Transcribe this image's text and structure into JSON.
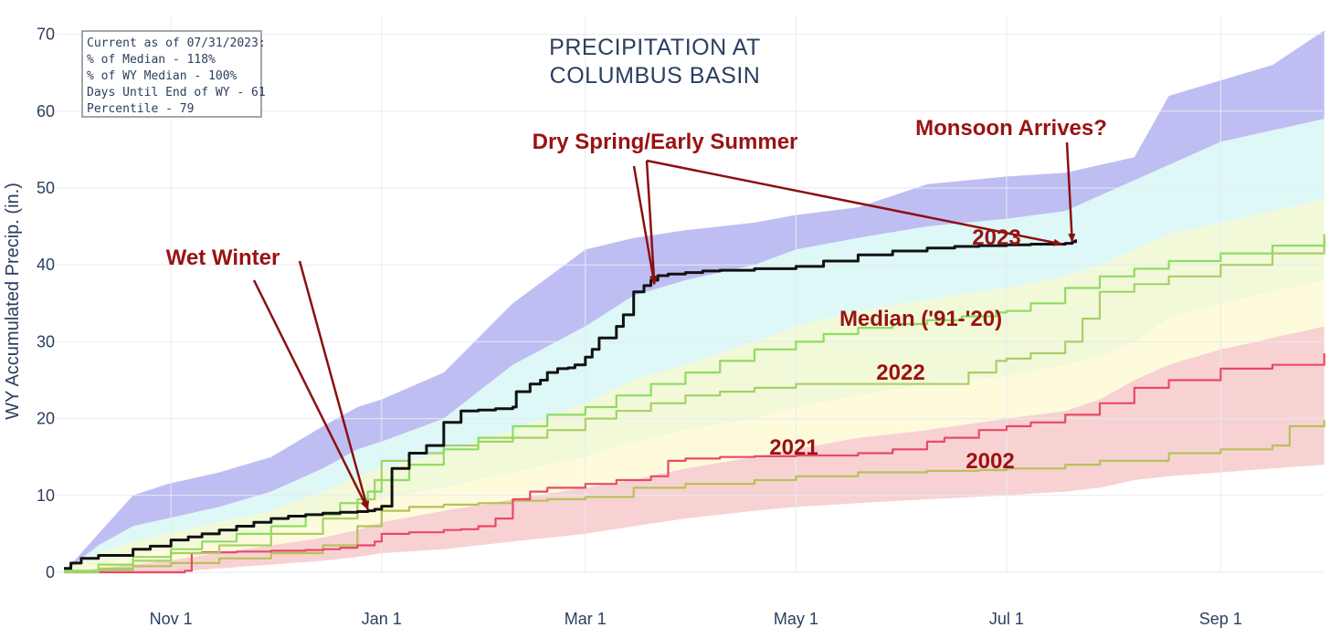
{
  "chart_data": {
    "type": "area",
    "title_lines": [
      "PRECIPITATION AT",
      "COLUMBUS BASIN"
    ],
    "ylabel": "WY Accumulated Precip. (in.)",
    "xlabel": "",
    "xlim_days": [
      0,
      365
    ],
    "ylim": [
      0,
      72
    ],
    "y_ticks": [
      0,
      10,
      20,
      30,
      40,
      50,
      60,
      70
    ],
    "x_ticks": [
      {
        "label": "Nov  1",
        "day": 31
      },
      {
        "label": "Jan  1",
        "day": 92
      },
      {
        "label": "Mar  1",
        "day": 151
      },
      {
        "label": "May  1",
        "day": 212
      },
      {
        "label": "Jul  1",
        "day": 273
      },
      {
        "label": "Sep  1",
        "day": 335
      }
    ],
    "grid": true,
    "info_box": [
      "Current as of 07/31/2023:",
      "% of Median - 118%",
      "% of WY Median - 100%",
      "Days Until End of WY - 61",
      "Percentile - 79"
    ],
    "percentile_bands": {
      "x": [
        0,
        10,
        20,
        30,
        45,
        60,
        75,
        85,
        92,
        110,
        130,
        151,
        165,
        180,
        200,
        212,
        230,
        250,
        273,
        290,
        300,
        310,
        320,
        335,
        350,
        365
      ],
      "max": [
        0,
        5,
        10,
        11.5,
        13,
        15,
        19,
        21.5,
        22.5,
        26,
        35,
        42,
        43.5,
        44.5,
        45.5,
        46.5,
        47.5,
        50.5,
        51.5,
        52,
        53,
        54,
        62,
        64,
        66,
        70.5
      ],
      "p90": [
        0,
        3.5,
        6,
        7,
        8.5,
        10.5,
        13.5,
        16,
        17,
        20,
        27,
        32,
        36,
        38,
        40,
        42,
        43.5,
        45,
        46,
        47,
        49,
        51,
        53,
        56,
        57.5,
        59
      ],
      "p70": [
        0,
        2.5,
        4,
        5,
        6.5,
        8,
        10.5,
        12.5,
        13.5,
        15.5,
        18.5,
        22,
        25,
        27,
        30,
        32,
        34,
        35.5,
        37,
        38.5,
        40,
        42,
        44,
        45.5,
        47,
        48.5
      ],
      "p30": [
        0,
        1,
        2,
        3,
        4,
        5.5,
        7,
        8.5,
        9.5,
        11,
        13,
        15,
        17,
        18.5,
        20,
        21.5,
        23,
        24.5,
        25.5,
        27,
        28,
        30,
        33,
        35,
        36.5,
        38
      ],
      "p10": [
        0,
        0.5,
        1,
        1.5,
        2.5,
        3.5,
        4.5,
        5.5,
        6.5,
        8,
        9.5,
        11,
        12,
        13.5,
        15,
        16,
        17.5,
        18.5,
        20,
        21,
        22.5,
        25,
        27,
        29,
        30.5,
        32
      ],
      "min": [
        0,
        0,
        0,
        0,
        0.5,
        1,
        1.5,
        2,
        2.5,
        3,
        4,
        5,
        6,
        7,
        8,
        8.5,
        9,
        9.5,
        10,
        10.5,
        11,
        12,
        12.5,
        13,
        13.5,
        14
      ]
    },
    "band_colors": [
      "#bfbef3",
      "#ddf8f6",
      "#f2f9d9",
      "#fdfbdc",
      "#f8d2d2"
    ],
    "series": [
      {
        "name": "2023",
        "color": "#111111",
        "width": 3,
        "x": [
          0,
          2,
          5,
          10,
          20,
          25,
          31,
          36,
          40,
          45,
          50,
          55,
          60,
          65,
          70,
          75,
          80,
          85,
          88,
          90,
          92,
          95,
          100,
          105,
          110,
          115,
          120,
          125,
          130,
          131,
          135,
          138,
          140,
          143,
          146,
          148,
          151,
          153,
          155,
          160,
          162,
          165,
          168,
          170,
          172,
          175,
          180,
          185,
          190,
          200,
          212,
          220,
          230,
          240,
          250,
          258,
          265,
          273,
          280,
          285,
          290,
          292,
          293
        ],
        "y": [
          0.5,
          1.2,
          1.8,
          2.2,
          3.0,
          3.4,
          4.2,
          4.6,
          5.0,
          5.5,
          6.0,
          6.5,
          7.0,
          7.3,
          7.5,
          7.7,
          7.8,
          7.9,
          8.0,
          8.2,
          8.6,
          13.5,
          15.5,
          16.5,
          19.5,
          21.0,
          21.1,
          21.3,
          21.5,
          23.5,
          24.5,
          25.0,
          26.0,
          26.5,
          26.6,
          27.0,
          28.0,
          29.0,
          30.5,
          32.0,
          33.5,
          36.5,
          37.3,
          38.0,
          38.6,
          38.8,
          39.0,
          39.2,
          39.3,
          39.5,
          39.8,
          40.5,
          41.3,
          41.8,
          42.2,
          42.4,
          42.5,
          42.6,
          42.7,
          42.7,
          42.8,
          43.0,
          43.3
        ]
      },
      {
        "name": "Median ('91-'20)",
        "color": "#8edc62",
        "width": 2.2,
        "x": [
          0,
          10,
          20,
          31,
          40,
          50,
          60,
          70,
          80,
          88,
          92,
          100,
          110,
          120,
          130,
          140,
          151,
          160,
          170,
          180,
          190,
          200,
          212,
          220,
          230,
          240,
          250,
          260,
          270,
          273,
          280,
          290,
          300,
          310,
          320,
          335,
          350,
          365
        ],
        "y": [
          0.2,
          1.0,
          2.0,
          3.0,
          4.0,
          5.0,
          6.0,
          7.5,
          9.0,
          10.5,
          12.0,
          14.0,
          16.0,
          17.5,
          19.0,
          20.5,
          21.5,
          23.0,
          24.5,
          26.0,
          27.5,
          29.0,
          30.0,
          31.0,
          31.8,
          32.3,
          32.8,
          33.3,
          33.8,
          34.0,
          35.0,
          37.0,
          38.5,
          39.5,
          40.5,
          41.5,
          42.5,
          43.5
        ]
      },
      {
        "name": "2022",
        "color": "#a8d068",
        "width": 2.2,
        "x": [
          0,
          10,
          20,
          31,
          45,
          60,
          75,
          85,
          90,
          92,
          100,
          110,
          120,
          130,
          140,
          151,
          160,
          170,
          180,
          190,
          200,
          212,
          230,
          250,
          260,
          262,
          270,
          273,
          280,
          290,
          295,
          300,
          310,
          320,
          335,
          350,
          365
        ],
        "y": [
          0,
          0.5,
          1.5,
          2.5,
          3.5,
          5.0,
          7.0,
          9.5,
          12.0,
          14.5,
          15.5,
          16.5,
          17.0,
          17.5,
          18.5,
          20.0,
          21.0,
          22.0,
          23.0,
          23.5,
          24.0,
          24.5,
          24.5,
          24.5,
          24.5,
          26.0,
          27.5,
          27.8,
          28.5,
          30.0,
          33.0,
          36.5,
          37.5,
          38.5,
          40.0,
          41.5,
          44.0
        ]
      },
      {
        "name": "2021",
        "color": "#e84a66",
        "width": 2.2,
        "x": [
          0,
          30,
          35,
          37,
          40,
          50,
          60,
          70,
          75,
          80,
          85,
          90,
          92,
          100,
          110,
          115,
          120,
          125,
          130,
          135,
          140,
          151,
          160,
          170,
          175,
          180,
          190,
          200,
          212,
          230,
          240,
          250,
          255,
          265,
          273,
          280,
          290,
          300,
          310,
          320,
          335,
          350,
          365
        ],
        "y": [
          0,
          0,
          0.2,
          2.5,
          2.6,
          2.7,
          2.8,
          2.9,
          3.0,
          3.2,
          3.5,
          4.0,
          5.0,
          5.2,
          5.5,
          5.6,
          6.0,
          7.0,
          9.5,
          10.5,
          11.0,
          11.5,
          12.0,
          12.5,
          14.5,
          14.8,
          15.0,
          15.1,
          15.2,
          15.5,
          16.0,
          17.0,
          17.5,
          18.5,
          19.0,
          19.5,
          20.5,
          22.0,
          24.0,
          25.0,
          26.5,
          27.0,
          28.5
        ]
      },
      {
        "name": "2002",
        "color": "#b5c25a",
        "width": 2.2,
        "x": [
          0,
          10,
          20,
          31,
          45,
          60,
          75,
          85,
          92,
          100,
          110,
          120,
          130,
          140,
          151,
          165,
          180,
          200,
          212,
          230,
          250,
          265,
          273,
          290,
          300,
          320,
          335,
          350,
          355,
          365
        ],
        "y": [
          0,
          0.3,
          0.8,
          1.2,
          1.8,
          2.5,
          3.5,
          6.0,
          8.0,
          8.5,
          8.8,
          9.0,
          9.3,
          9.5,
          9.8,
          11.0,
          11.5,
          12.0,
          12.5,
          13.0,
          13.2,
          13.3,
          13.5,
          14.0,
          14.5,
          15.5,
          16.0,
          16.5,
          19.0,
          19.8
        ]
      }
    ],
    "annotations": [
      {
        "text": "2023",
        "series": "2023"
      },
      {
        "text": "Median ('91-'20)",
        "series": "Median ('91-'20)"
      },
      {
        "text": "2022",
        "series": "2022"
      },
      {
        "text": "2021",
        "series": "2021"
      },
      {
        "text": "2002",
        "series": "2002"
      },
      {
        "text": "Wet Winter",
        "arrow_to": [
          88,
          8.2
        ]
      },
      {
        "text": "Dry Spring/Early Summer",
        "arrow_to": [
          171,
          37.5
        ]
      },
      {
        "text": "Monsoon Arrives?",
        "arrow_to": [
          292,
          43.0
        ]
      }
    ]
  }
}
